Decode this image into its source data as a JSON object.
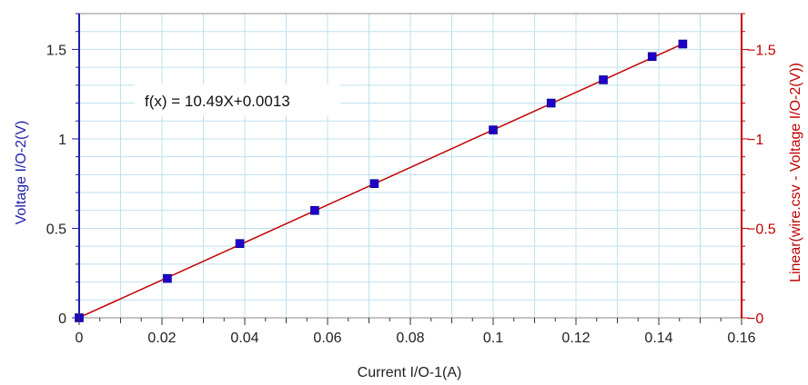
{
  "chart_data": {
    "type": "scatter",
    "xlabel": "Current I/O-1(A)",
    "ylabel": "Voltage I/O-2(V)",
    "y2label": "Linear(wire.csv - Voltage I/O-2(V))",
    "annotation": "f(x) = 10.49X+0.0013",
    "xlim": [
      0,
      0.16
    ],
    "ylim": [
      0,
      1.7
    ],
    "x_ticks": [
      0,
      0.02,
      0.04,
      0.06,
      0.08,
      0.1,
      0.12,
      0.14,
      0.16
    ],
    "x_tick_labels": [
      "0",
      "0.02",
      "0.04",
      "0.06",
      "0.08",
      "0.1",
      "0.12",
      "0.14",
      "0.16"
    ],
    "y_ticks": [
      0,
      0.5,
      1,
      1.5
    ],
    "y_tick_labels": [
      "0",
      "0.5",
      "1",
      "1.5"
    ],
    "y2_tick_labels": [
      "−0",
      "−0.5",
      "−1",
      "−1.5"
    ],
    "grid": true,
    "series": [
      {
        "values_x": [
          0,
          0.0213,
          0.0388,
          0.0569,
          0.0713,
          0.1,
          0.114,
          0.1266,
          0.1384,
          0.1458
        ],
        "values_y": [
          0,
          0.22,
          0.415,
          0.6,
          0.75,
          1.05,
          1.2,
          1.33,
          1.46,
          1.53
        ],
        "color": "#1f00c8"
      }
    ],
    "fit": {
      "slope": 10.49,
      "intercept": 0.0013,
      "x_range": [
        0,
        0.1458
      ],
      "color": "#c00000"
    },
    "colors": {
      "left_axis": "#1f1fa8",
      "right_axis": "#c00000",
      "grid": "#bfe0ee",
      "frame": "#888888"
    }
  }
}
